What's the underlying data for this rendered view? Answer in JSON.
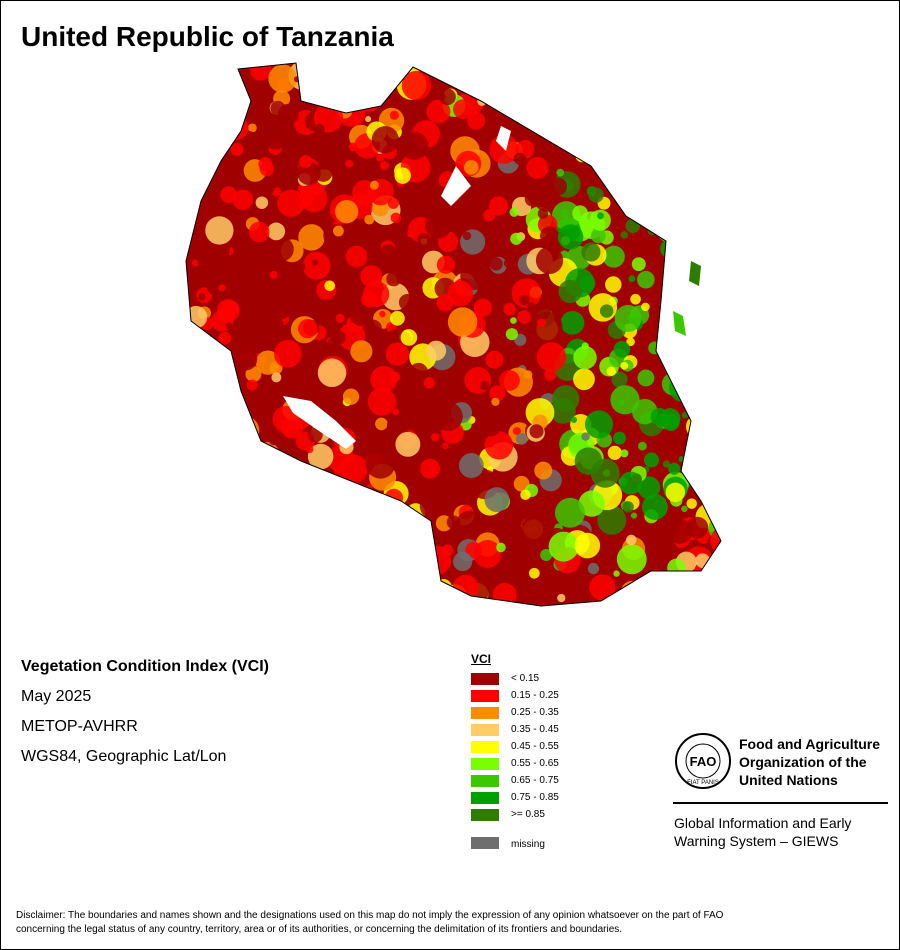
{
  "header": {
    "title": "United Republic of Tanzania"
  },
  "info": {
    "product": "Vegetation Condition Index (VCI)",
    "date": "May 2025",
    "sensor": "METOP-AVHRR",
    "projection": "WGS84, Geographic Lat/Lon"
  },
  "legend": {
    "title": "VCI",
    "items": [
      {
        "label": "< 0.15",
        "color": "#a00000"
      },
      {
        "label": "0.15 - 0.25",
        "color": "#ff0000"
      },
      {
        "label": "0.25 - 0.35",
        "color": "#ff8c00"
      },
      {
        "label": "0.35 - 0.45",
        "color": "#ffcc66"
      },
      {
        "label": "0.45 - 0.55",
        "color": "#ffff00"
      },
      {
        "label": "0.55 - 0.65",
        "color": "#78ff00"
      },
      {
        "label": "0.65 - 0.75",
        "color": "#3cc800"
      },
      {
        "label": "0.75 - 0.85",
        "color": "#00a000"
      },
      {
        "label": ">= 0.85",
        "color": "#2e7d00"
      }
    ],
    "missing": {
      "label": "missing",
      "color": "#6e6e6e"
    }
  },
  "logo": {
    "emblem": "FAO",
    "motto": "FIAT PANIS",
    "org": [
      "Food and Agriculture",
      "Organization of the",
      "United Nations"
    ],
    "system": [
      "Global Information and Early",
      "Warning System – GIEWS"
    ]
  },
  "disclaimer": [
    "Disclaimer: The boundaries and names shown and the designations used on this map do not imply the expression of any opinion whatsoever on the part of FAO",
    "concerning the legal status of any country, territory, area or of its authorities, or concerning the delimitation of its frontiers and boundaries."
  ]
}
